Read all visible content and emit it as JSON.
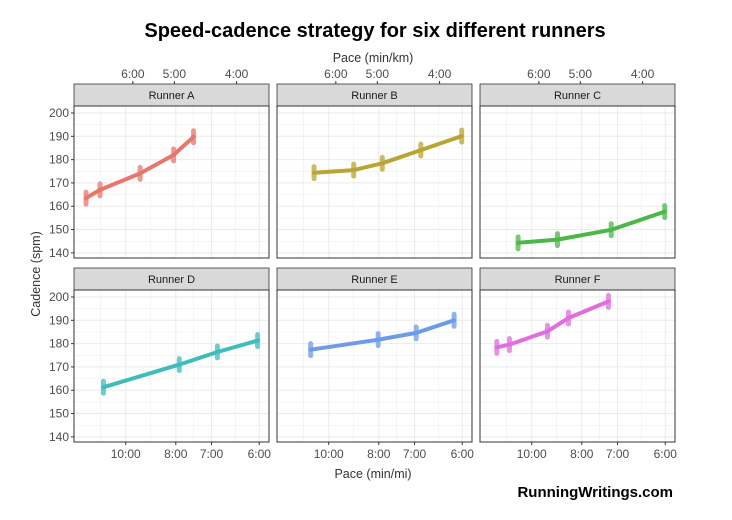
{
  "chart_data": {
    "type": "line",
    "title": "Speed-cadence strategy for six different runners",
    "xlabel": "Pace (min/mi)",
    "xlabel_top": "Pace (min/km)",
    "ylabel": "Cadence (spm)",
    "x_scale": "reciprocal (speed-linear, faster to the right)",
    "xlim_pace_min_per_mi": [
      13.48,
      5.83
    ],
    "ylim": [
      137.8,
      203
    ],
    "grid": true,
    "x_ticks": [
      {
        "label": "10:00",
        "pace": 10
      },
      {
        "label": "8:00",
        "pace": 8
      },
      {
        "label": "7:00",
        "pace": 7
      },
      {
        "label": "6:00",
        "pace": 6
      }
    ],
    "x_ticks_top": [
      {
        "label": "6:00",
        "pace_min_per_km": 6
      },
      {
        "label": "5:00",
        "pace_min_per_km": 5
      },
      {
        "label": "4:00",
        "pace_min_per_km": 4
      }
    ],
    "y_ticks": [
      140,
      150,
      160,
      170,
      180,
      190,
      200
    ],
    "series": [
      {
        "name": "Runner A",
        "color": "#e8766c",
        "points": [
          [
            12.47,
            163.5
          ],
          [
            11.47,
            167
          ],
          [
            9.33,
            174.1
          ],
          [
            8.07,
            182
          ],
          [
            7.47,
            189.8
          ]
        ]
      },
      {
        "name": "Runner B",
        "color": "#b9a532",
        "points": [
          [
            10.79,
            174.4
          ],
          [
            8.89,
            175.5
          ],
          [
            7.89,
            178.4
          ],
          [
            6.85,
            184.1
          ],
          [
            6.01,
            190.1
          ]
        ]
      },
      {
        "name": "Runner C",
        "color": "#4cb848",
        "points": [
          [
            10.73,
            144.3
          ],
          [
            8.86,
            145.7
          ],
          [
            7.16,
            149.9
          ],
          [
            6.01,
            157.7
          ]
        ]
      },
      {
        "name": "Runner D",
        "color": "#3fbcbc",
        "points": [
          [
            11.25,
            161.3
          ],
          [
            7.89,
            171
          ],
          [
            6.86,
            176.4
          ],
          [
            6.03,
            181.3
          ]
        ]
      },
      {
        "name": "Runner E",
        "color": "#6d9bea",
        "points": [
          [
            10.99,
            177.4
          ],
          [
            8.02,
            181.7
          ],
          [
            6.96,
            184.6
          ],
          [
            6.15,
            190
          ]
        ]
      },
      {
        "name": "Runner F",
        "color": "#e06ede",
        "points": [
          [
            12.11,
            178.4
          ],
          [
            11.25,
            179.6
          ],
          [
            9.27,
            185.3
          ],
          [
            8.45,
            191
          ],
          [
            7.23,
            198.1
          ]
        ]
      }
    ]
  },
  "watermark": "RunningWritings.com"
}
